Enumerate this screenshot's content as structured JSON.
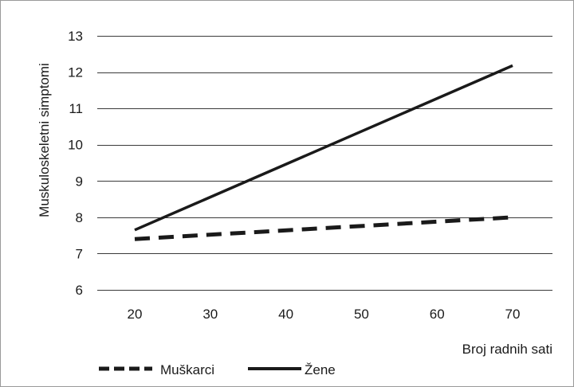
{
  "chart_data": {
    "type": "line",
    "title": "",
    "xlabel": "Broj radnih sati",
    "ylabel": "Muskuloskeletni simptomi",
    "x": [
      20,
      70
    ],
    "x_ticks": [
      "20",
      "30",
      "40",
      "50",
      "60",
      "70"
    ],
    "x_tick_values": [
      20,
      30,
      40,
      50,
      60,
      70
    ],
    "y_ticks": [
      "6",
      "7",
      "8",
      "9",
      "10",
      "11",
      "12",
      "13"
    ],
    "y_tick_values": [
      6,
      7,
      8,
      9,
      10,
      11,
      12,
      13
    ],
    "xlim": [
      10,
      75
    ],
    "ylim": [
      6,
      13
    ],
    "grid": "horizontal",
    "legend_position": "bottom-left",
    "series": [
      {
        "name": "Muškarci",
        "style": "dashed",
        "color": "#1a1a1a",
        "values": [
          7.4,
          8.0
        ]
      },
      {
        "name": "Žene",
        "style": "solid",
        "color": "#1a1a1a",
        "values": [
          7.65,
          12.18
        ]
      }
    ]
  }
}
